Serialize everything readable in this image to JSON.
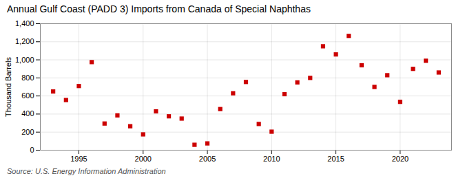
{
  "chart_data": {
    "type": "scatter",
    "title": "Annual Gulf Coast (PADD 3) Imports from Canada of Special Naphthas",
    "ylabel": "Thousand Barrels",
    "source": "Source: U.S. Energy Information Administration",
    "x": [
      1993,
      1994,
      1995,
      1996,
      1997,
      1998,
      1999,
      2000,
      2001,
      2002,
      2003,
      2004,
      2005,
      2006,
      2007,
      2008,
      2009,
      2010,
      2011,
      2012,
      2013,
      2014,
      2015,
      2016,
      2017,
      2018,
      2019,
      2020,
      2021,
      2022,
      2023
    ],
    "values": [
      650,
      555,
      710,
      975,
      295,
      385,
      265,
      175,
      430,
      375,
      350,
      60,
      75,
      455,
      630,
      755,
      290,
      205,
      620,
      750,
      800,
      1150,
      1060,
      1265,
      940,
      700,
      830,
      535,
      900,
      990,
      860
    ],
    "color": "#cc0000",
    "marker": "square",
    "xlim": [
      1992,
      2024
    ],
    "xticks": [
      1995,
      2000,
      2005,
      2010,
      2015,
      2020
    ],
    "ylim": [
      0,
      1400
    ],
    "yticks": [
      0,
      200,
      400,
      600,
      800,
      {
        "value": 1000,
        "label": "1,000"
      },
      {
        "value": 1200,
        "label": "1,200"
      },
      {
        "value": 1400,
        "label": "1,400"
      }
    ],
    "grid": true
  }
}
